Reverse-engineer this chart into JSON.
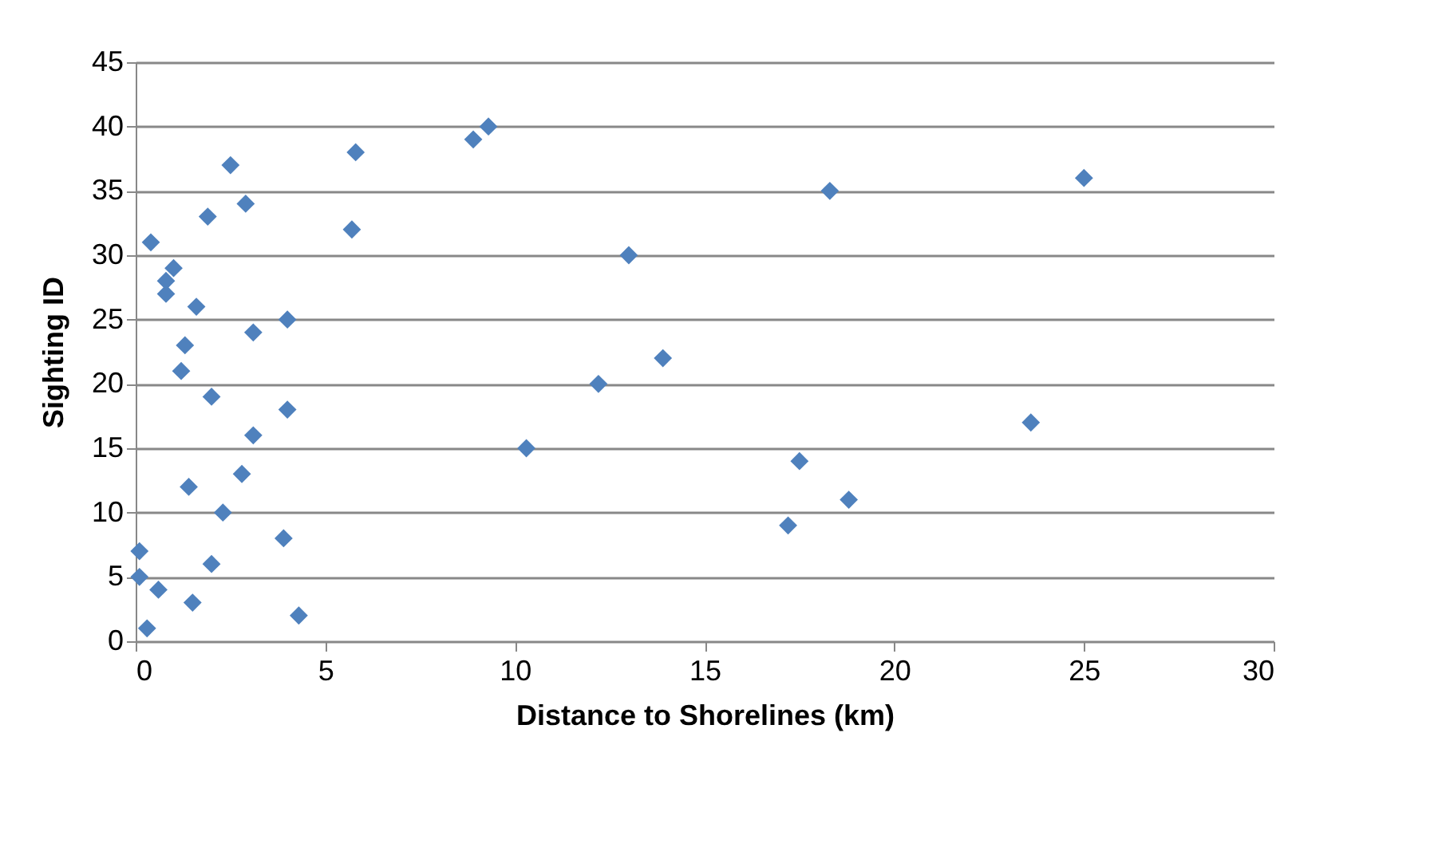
{
  "chart_data": {
    "type": "scatter",
    "xlabel": "Distance to Shorelines (km)",
    "ylabel": "Sighting ID",
    "xlim": [
      0,
      30
    ],
    "xticks": [
      0,
      5,
      10,
      15,
      20,
      25,
      30
    ],
    "ylim": [
      0,
      45
    ],
    "yticks": [
      0,
      5,
      10,
      15,
      20,
      25,
      30,
      35,
      40,
      45
    ],
    "grid": "y",
    "marker": "diamond",
    "legend": false,
    "series": [
      {
        "color": "#4f81bd",
        "x": [
          0.3,
          4.3,
          1.5,
          0.6,
          0.1,
          2.0,
          0.1,
          3.9,
          17.2,
          2.3,
          18.8,
          1.4,
          2.8,
          17.5,
          10.3,
          3.1,
          23.6,
          4.0,
          2.0,
          12.2,
          1.2,
          13.9,
          1.3,
          3.1,
          4.0,
          1.6,
          0.8,
          0.8,
          1.0,
          13.0,
          0.4,
          5.7,
          1.9,
          2.9,
          18.3,
          25.0,
          2.5,
          5.8,
          8.9,
          9.3
        ],
        "values": [
          1,
          2,
          3,
          4,
          5,
          6,
          7,
          8,
          9,
          10,
          11,
          12,
          13,
          14,
          15,
          16,
          17,
          18,
          19,
          20,
          21,
          22,
          23,
          24,
          25,
          26,
          27,
          28,
          29,
          30,
          31,
          32,
          33,
          34,
          35,
          36,
          37,
          38,
          39,
          40
        ]
      }
    ]
  }
}
